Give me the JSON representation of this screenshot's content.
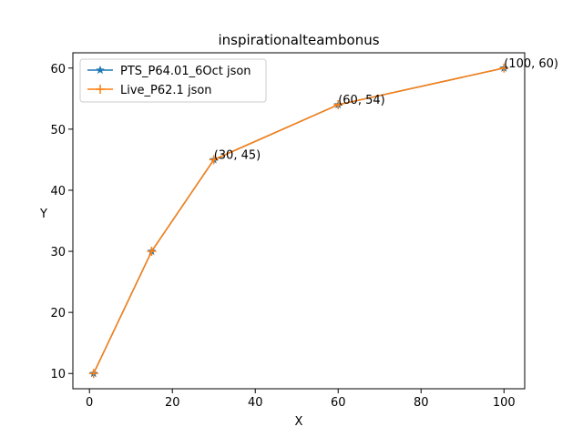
{
  "chart_data": {
    "type": "line",
    "title": "inspirationalteambonus",
    "xlabel": "X",
    "ylabel": "Y",
    "xlim": [
      -4,
      105
    ],
    "ylim": [
      7.5,
      62.5
    ],
    "xticks": [
      0,
      20,
      40,
      60,
      80,
      100
    ],
    "yticks": [
      10,
      20,
      30,
      40,
      50,
      60
    ],
    "grid": false,
    "legend_position": "upper-left",
    "series": [
      {
        "name": "PTS_P64.01_6Oct json",
        "color": "#1f77b4",
        "marker": "star",
        "x": [
          1,
          15,
          30,
          60,
          100
        ],
        "y": [
          10,
          30,
          45,
          54,
          60
        ]
      },
      {
        "name": "Live_P62.1 json",
        "color": "#ff7f0e",
        "marker": "plus",
        "x": [
          1,
          15,
          30,
          60,
          100
        ],
        "y": [
          10,
          30,
          45,
          54,
          60
        ]
      }
    ],
    "annotations": [
      {
        "text": "(30, 45)",
        "x": 30,
        "y": 45
      },
      {
        "text": "(60, 54)",
        "x": 60,
        "y": 54
      },
      {
        "text": "(100, 60)",
        "x": 100,
        "y": 60
      }
    ]
  }
}
